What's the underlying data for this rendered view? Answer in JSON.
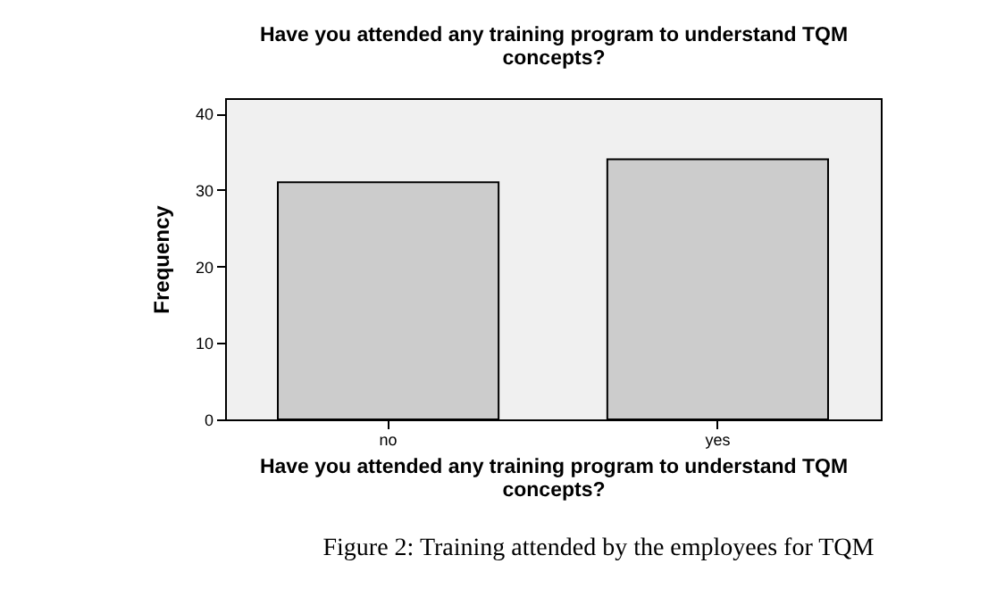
{
  "chart_data": {
    "type": "bar",
    "title": "Have you attended any training program to understand TQM concepts?",
    "xlabel": "Have you attended any training program to understand TQM concepts?",
    "ylabel": "Frequency",
    "categories": [
      "no",
      "yes"
    ],
    "values": [
      31,
      34
    ],
    "color": "#cccccc",
    "ylim": [
      0,
      42
    ],
    "yticks": [
      0,
      10,
      20,
      30,
      40
    ],
    "grid": false,
    "annotations": [
      "Figure 2: Training attended by the employees for TQM"
    ]
  }
}
